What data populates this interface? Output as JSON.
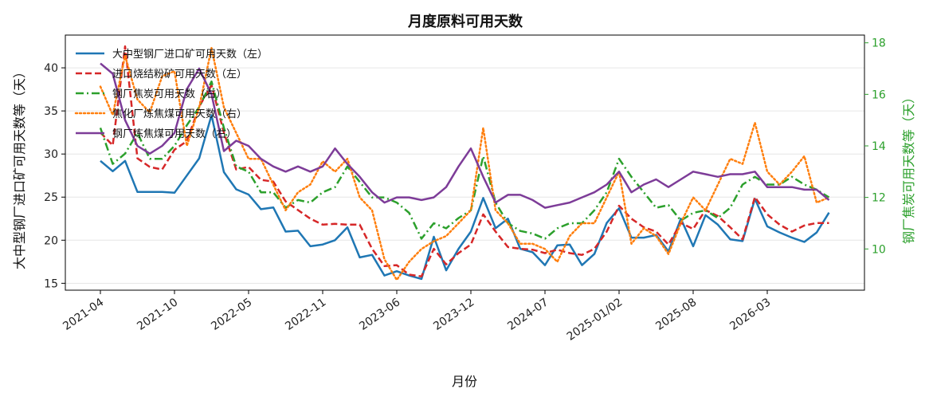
{
  "chart_data": {
    "type": "line",
    "title": "月度原料可用天数",
    "xlabel": "月份",
    "ylabel_left": "大中型钢厂进口矿可用天数等（天）",
    "ylabel_right": "钢厂焦炭可用天数等（天）",
    "ylim_left": [
      14.2,
      43.8
    ],
    "ylim_right": [
      8.4,
      18.3
    ],
    "yticks_left": [
      15,
      20,
      25,
      30,
      35,
      40
    ],
    "yticks_right": [
      10,
      12,
      14,
      16,
      18
    ],
    "x_tick_labels": [
      "2021-04",
      "2021-10",
      "2022-05",
      "2022-11",
      "2023-06",
      "2023-12",
      "2024-07",
      "2025-01/02",
      "2025-08",
      "2026-03"
    ],
    "x_tick_index": [
      0,
      6,
      12,
      18,
      24,
      30,
      36,
      42,
      48,
      54
    ],
    "grid": true,
    "legend_position": "top-left",
    "series": [
      {
        "name": "大中型钢厂进口矿可用天数（左）",
        "axis": "left",
        "color": "#1f77b4",
        "style": "solid",
        "values": [
          29.2,
          28.0,
          29.2,
          25.6,
          25.6,
          25.6,
          25.5,
          27.5,
          29.5,
          34.5,
          27.9,
          25.9,
          25.3,
          23.6,
          23.8,
          21.0,
          21.1,
          19.3,
          19.5,
          20.0,
          21.5,
          18.0,
          18.3,
          15.9,
          16.4,
          15.9,
          15.5,
          20.4,
          16.5,
          19.0,
          21.0,
          24.9,
          21.4,
          22.5,
          19.0,
          18.6,
          17.1,
          19.4,
          19.5,
          17.1,
          18.4,
          22.0,
          23.7,
          20.3,
          20.3,
          20.6,
          18.7,
          22.5,
          19.3,
          22.9,
          21.8,
          20.1,
          19.9,
          24.8,
          21.6,
          20.9,
          20.3,
          19.8,
          20.9,
          23.2
        ]
      },
      {
        "name": "进口烧结粉矿可用天数（左）",
        "axis": "left",
        "color": "#d62728",
        "style": "dashed",
        "values": [
          32.5,
          31.0,
          42.5,
          29.5,
          28.5,
          28.2,
          30.5,
          31.5,
          35.5,
          38.0,
          32.5,
          28.2,
          28.5,
          27.0,
          26.8,
          24.5,
          23.5,
          22.5,
          21.8,
          21.9,
          21.8,
          21.8,
          19.0,
          17.0,
          17.1,
          16.0,
          15.8,
          19.0,
          17.2,
          18.5,
          19.5,
          23.0,
          21.0,
          19.2,
          19.0,
          18.9,
          18.5,
          18.9,
          18.5,
          18.3,
          19.0,
          21.0,
          24.0,
          22.5,
          21.5,
          21.0,
          19.5,
          22.0,
          21.3,
          23.5,
          22.8,
          21.5,
          20.1,
          25.0,
          23.0,
          21.8,
          21.0,
          21.7,
          22.0,
          22.0
        ]
      },
      {
        "name": "钢厂焦炭可用天数（右）",
        "axis": "right",
        "color": "#2ca02c",
        "style": "dashdot",
        "values": [
          14.7,
          13.3,
          13.7,
          14.5,
          13.5,
          13.5,
          14.0,
          14.8,
          15.5,
          16.5,
          14.7,
          13.2,
          13.0,
          12.2,
          12.2,
          11.6,
          11.9,
          11.8,
          12.2,
          12.4,
          13.2,
          12.6,
          12.0,
          12.0,
          11.8,
          11.4,
          10.4,
          11.0,
          10.8,
          11.2,
          11.5,
          13.6,
          11.8,
          11.0,
          10.7,
          10.6,
          10.4,
          10.8,
          11.0,
          11.0,
          11.5,
          12.2,
          13.5,
          12.8,
          12.2,
          11.6,
          11.7,
          11.1,
          11.4,
          11.5,
          11.2,
          11.6,
          12.5,
          12.8,
          12.5,
          12.5,
          12.8,
          12.5,
          12.3,
          12.0
        ]
      },
      {
        "name": "焦化厂炼焦煤可用天数（右）",
        "axis": "right",
        "color": "#ff7f0e",
        "style": "dotted",
        "values": [
          16.3,
          15.2,
          17.5,
          15.8,
          15.3,
          16.7,
          16.9,
          14.0,
          15.5,
          17.8,
          15.5,
          14.5,
          13.5,
          13.5,
          12.5,
          11.5,
          12.2,
          12.5,
          13.4,
          13.0,
          13.5,
          12.0,
          11.5,
          9.6,
          8.8,
          9.5,
          10.0,
          10.3,
          10.5,
          11.0,
          11.5,
          14.7,
          11.5,
          11.0,
          10.2,
          10.2,
          10.0,
          9.5,
          10.5,
          11.0,
          11.0,
          12.0,
          13.0,
          10.2,
          10.8,
          10.5,
          9.8,
          11.0,
          12.0,
          11.5,
          12.5,
          13.5,
          13.3,
          14.9,
          13.0,
          12.5,
          13.0,
          13.6,
          11.8,
          12.0
        ]
      },
      {
        "name": "钢厂炼焦煤可用天数（右）",
        "axis": "right",
        "color": "#7d3c98",
        "style": "solid",
        "values": [
          17.2,
          16.8,
          15.0,
          14.0,
          13.7,
          14.0,
          14.5,
          16.2,
          17.0,
          16.0,
          13.8,
          14.2,
          14.0,
          13.5,
          13.2,
          13.0,
          13.2,
          13.0,
          13.2,
          13.9,
          13.3,
          12.8,
          12.2,
          11.8,
          12.0,
          12.0,
          11.9,
          12.0,
          12.4,
          13.2,
          13.9,
          12.8,
          11.8,
          12.1,
          12.1,
          11.9,
          11.6,
          11.7,
          11.8,
          12.0,
          12.2,
          12.5,
          13.0,
          12.2,
          12.5,
          12.7,
          12.4,
          12.7,
          13.0,
          12.9,
          12.8,
          12.9,
          12.9,
          13.0,
          12.4,
          12.4,
          12.4,
          12.3,
          12.3,
          11.9
        ]
      }
    ]
  }
}
